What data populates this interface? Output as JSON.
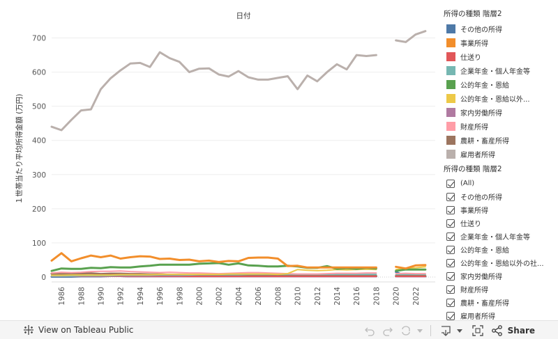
{
  "chart_data": {
    "type": "line",
    "title": "日付",
    "xlabel": "",
    "ylabel": "１世帯当たり平均所得金額 (万円)",
    "xlim": [
      1985,
      2024
    ],
    "ylim": [
      0,
      750
    ],
    "yticks": [
      0,
      100,
      200,
      300,
      400,
      500,
      600,
      700
    ],
    "xticks": [
      1986,
      1988,
      1990,
      1992,
      1994,
      1996,
      1998,
      2000,
      2002,
      2004,
      2006,
      2008,
      2010,
      2012,
      2014,
      2016,
      2018,
      2020,
      2022
    ],
    "x": [
      1985,
      1986,
      1987,
      1988,
      1989,
      1990,
      1991,
      1992,
      1993,
      1994,
      1995,
      1996,
      1997,
      1998,
      1999,
      2000,
      2001,
      2002,
      2003,
      2004,
      2005,
      2006,
      2007,
      2008,
      2009,
      2010,
      2011,
      2012,
      2013,
      2014,
      2015,
      2016,
      2017,
      2018,
      2019,
      2020,
      2021,
      2022,
      2023
    ],
    "series": [
      {
        "name": "雇用者所得",
        "color": "#bab0ac",
        "width": 3,
        "values": [
          440,
          430,
          460,
          488,
          491,
          550,
          582,
          605,
          625,
          627,
          615,
          658,
          641,
          630,
          600,
          610,
          611,
          593,
          587,
          603,
          585,
          578,
          578,
          583,
          588,
          550,
          590,
          573,
          600,
          623,
          608,
          650,
          647,
          650,
          null,
          693,
          688,
          710,
          720
        ]
      },
      {
        "name": "事業所得",
        "color": "#f28e2b",
        "width": 3,
        "values": [
          48,
          70,
          46,
          55,
          63,
          58,
          63,
          54,
          58,
          61,
          60,
          53,
          54,
          50,
          51,
          46,
          48,
          44,
          47,
          46,
          56,
          57,
          57,
          54,
          32,
          33,
          28,
          28,
          28,
          28,
          28,
          28,
          28,
          28,
          null,
          30,
          25,
          34,
          35
        ]
      },
      {
        "name": "公的年金・恩給",
        "color": "#59a14f",
        "width": 3,
        "values": [
          18,
          25,
          24,
          24,
          27,
          26,
          29,
          28,
          28,
          31,
          33,
          36,
          36,
          36,
          36,
          39,
          40,
          41,
          36,
          40,
          34,
          33,
          31,
          31,
          33,
          31,
          27,
          27,
          32,
          24,
          26,
          24,
          27,
          25,
          null,
          18,
          22,
          22,
          22
        ]
      },
      {
        "name": "公的年金・恩給以外の社会保障給付金",
        "color": "#edc948",
        "width": 2,
        "values": [
          5,
          5,
          6,
          6,
          6,
          6,
          6,
          7,
          7,
          7,
          7,
          8,
          8,
          8,
          8,
          8,
          8,
          8,
          9,
          9,
          9,
          9,
          9,
          8,
          10,
          22,
          20,
          19,
          20,
          22,
          21,
          22,
          23,
          22,
          null,
          22,
          26,
          27,
          30
        ]
      },
      {
        "name": "財産所得",
        "color": "#ff9da7",
        "width": 2,
        "values": [
          12,
          14,
          13,
          14,
          16,
          17,
          17,
          18,
          16,
          15,
          14,
          13,
          14,
          13,
          12,
          12,
          11,
          10,
          11,
          12,
          13,
          13,
          12,
          11,
          10,
          9,
          9,
          9,
          10,
          11,
          11,
          11,
          12,
          12,
          null,
          10,
          11,
          10,
          10
        ]
      },
      {
        "name": "企業年金・個人年金等",
        "color": "#76b7b2",
        "width": 2,
        "values": [
          3,
          3,
          3,
          4,
          4,
          4,
          4,
          5,
          5,
          5,
          5,
          6,
          6,
          6,
          6,
          7,
          7,
          7,
          7,
          7,
          8,
          8,
          8,
          8,
          8,
          8,
          8,
          8,
          8,
          8,
          8,
          8,
          8,
          8,
          null,
          8,
          8,
          8,
          8
        ]
      },
      {
        "name": "仕送り",
        "color": "#e15759",
        "width": 2,
        "values": [
          3,
          3,
          3,
          3,
          3,
          3,
          3,
          3,
          3,
          3,
          3,
          3,
          3,
          3,
          2,
          2,
          2,
          2,
          2,
          2,
          2,
          2,
          2,
          2,
          2,
          2,
          2,
          2,
          2,
          2,
          2,
          2,
          2,
          2,
          null,
          2,
          2,
          2,
          2
        ]
      },
      {
        "name": "農耕・畜産所得",
        "color": "#9c755f",
        "width": 3,
        "values": [
          10,
          9,
          9,
          10,
          11,
          9,
          10,
          10,
          9,
          9,
          8,
          8,
          7,
          7,
          6,
          6,
          6,
          5,
          5,
          5,
          5,
          5,
          5,
          5,
          5,
          5,
          4,
          4,
          4,
          4,
          4,
          4,
          3,
          3,
          null,
          3,
          3,
          3,
          3
        ]
      },
      {
        "name": "家内労働所得",
        "color": "#b07aa1",
        "width": 2,
        "values": [
          2,
          2,
          2,
          2,
          2,
          2,
          2,
          2,
          1,
          1,
          1,
          1,
          1,
          1,
          1,
          1,
          1,
          1,
          1,
          1,
          1,
          1,
          1,
          1,
          1,
          1,
          1,
          1,
          1,
          1,
          1,
          1,
          1,
          1,
          null,
          1,
          1,
          1,
          1
        ]
      },
      {
        "name": "その他の所得",
        "color": "#4e79a7",
        "width": 3,
        "values": [
          1,
          1,
          1,
          2,
          2,
          2,
          3,
          3,
          2,
          2,
          2,
          2,
          2,
          2,
          2,
          2,
          2,
          2,
          2,
          2,
          2,
          2,
          2,
          2,
          2,
          2,
          2,
          2,
          2,
          2,
          2,
          2,
          2,
          2,
          null,
          15,
          2,
          2,
          2
        ]
      }
    ]
  },
  "legend": {
    "title": "所得の種類 階層2",
    "items": [
      {
        "label": "その他の所得",
        "color": "#4e79a7"
      },
      {
        "label": "事業所得",
        "color": "#f28e2b"
      },
      {
        "label": "仕送り",
        "color": "#e15759"
      },
      {
        "label": "企業年金・個人年金等",
        "color": "#76b7b2"
      },
      {
        "label": "公的年金・恩給",
        "color": "#59a14f"
      },
      {
        "label": "公的年金・恩給以外...",
        "color": "#edc948"
      },
      {
        "label": "家内労働所得",
        "color": "#b07aa1"
      },
      {
        "label": "財産所得",
        "color": "#ff9da7"
      },
      {
        "label": "農耕・畜産所得",
        "color": "#9c755f"
      },
      {
        "label": "雇用者所得",
        "color": "#bab0ac"
      }
    ]
  },
  "filter": {
    "title": "所得の種類 階層2",
    "items": [
      "(All)",
      "その他の所得",
      "事業所得",
      "仕送り",
      "企業年金・個人年金等",
      "公的年金・恩給",
      "公的年金・恩給以外の社...",
      "家内労働所得",
      "財産所得",
      "農耕・畜産所得",
      "雇用者所得"
    ]
  },
  "footer": {
    "view_label": "View on Tableau Public",
    "share_label": "Share"
  }
}
